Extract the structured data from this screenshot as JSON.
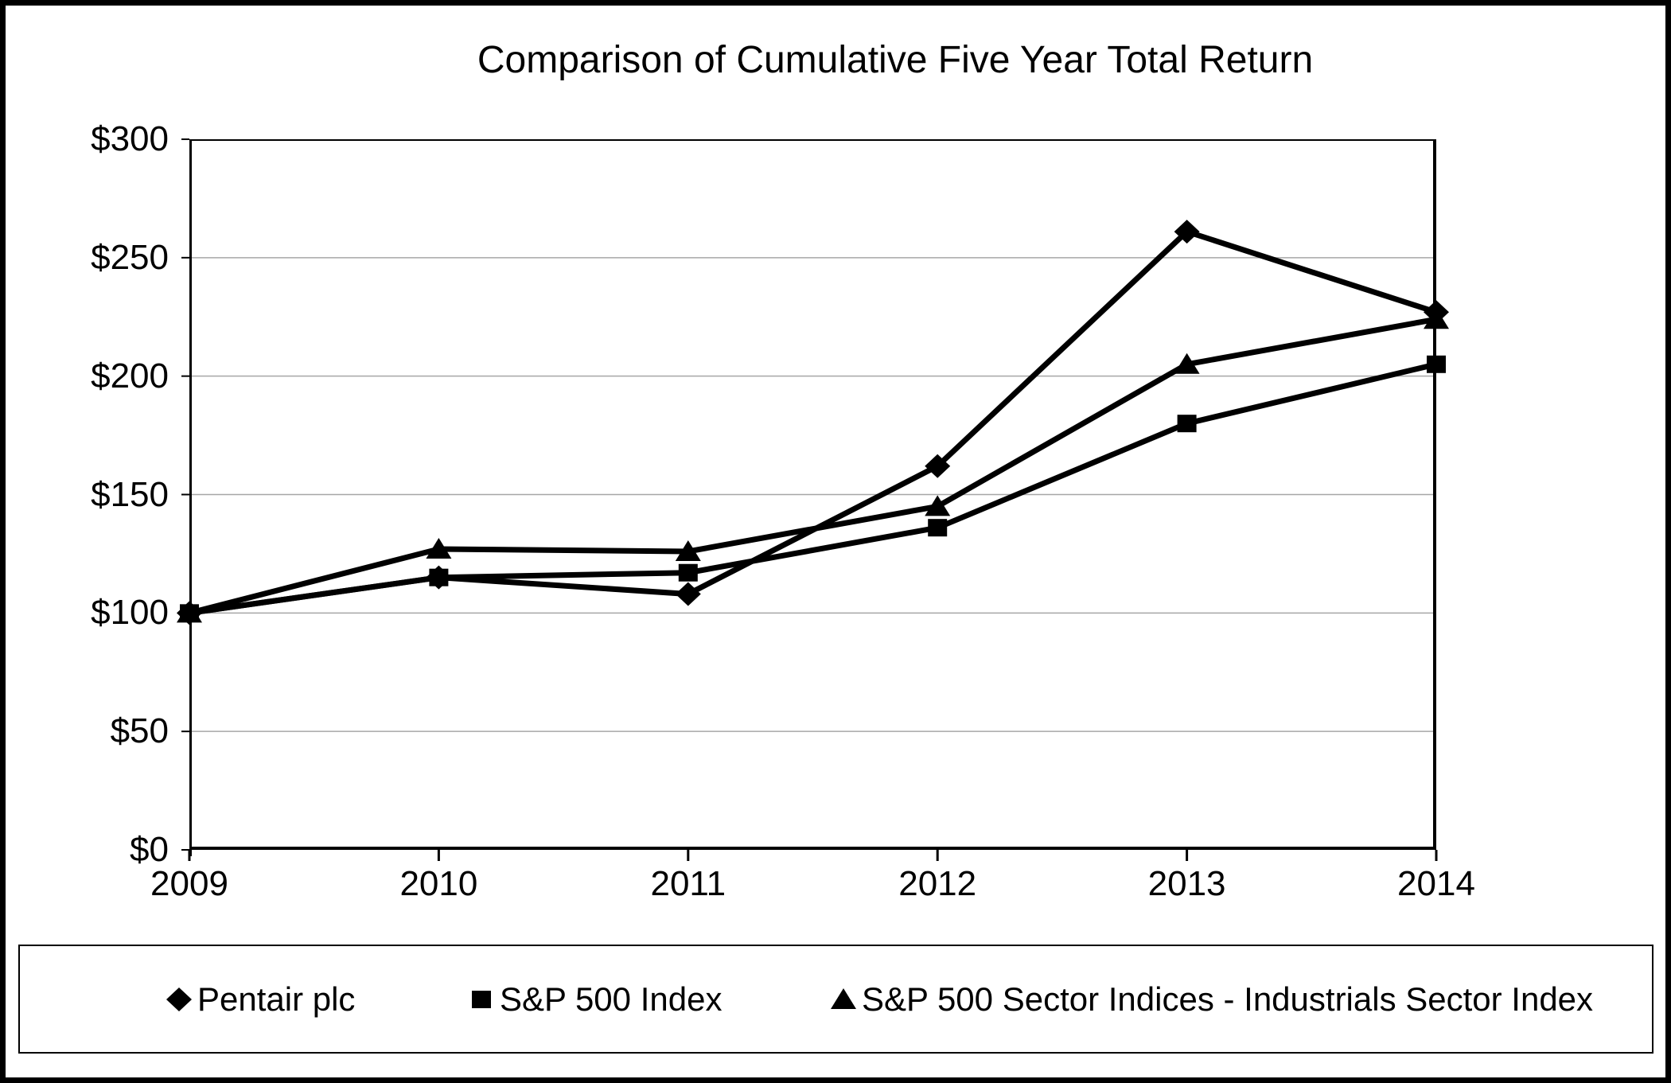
{
  "page": {
    "background": "#ffffff",
    "frame_color": "#000000"
  },
  "chart_data": {
    "type": "line",
    "title": "Comparison of Cumulative Five Year Total Return",
    "categories": [
      "2009",
      "2010",
      "2011",
      "2012",
      "2013",
      "2014"
    ],
    "series": [
      {
        "name": "Pentair plc",
        "marker": "diamond",
        "color": "#000000",
        "values": [
          100,
          115,
          108,
          162,
          261,
          227
        ]
      },
      {
        "name": "S&P 500 Index",
        "marker": "square",
        "color": "#000000",
        "values": [
          100,
          115,
          117,
          136,
          180,
          205
        ]
      },
      {
        "name": "S&P 500 Sector Indices - Industrials Sector Index",
        "marker": "triangle",
        "color": "#000000",
        "values": [
          100,
          127,
          126,
          145,
          205,
          224
        ]
      }
    ],
    "xlabel": "",
    "ylabel": "",
    "ylim": [
      0,
      300
    ],
    "y_tick_step": 50,
    "y_tick_labels": [
      "$300",
      "$250",
      "$200",
      "$150",
      "$100",
      "$50",
      "$0"
    ],
    "grid": "horizontal",
    "gridline_color": "#a6a6a6",
    "line_color": "#000000",
    "legend_position": "bottom"
  }
}
